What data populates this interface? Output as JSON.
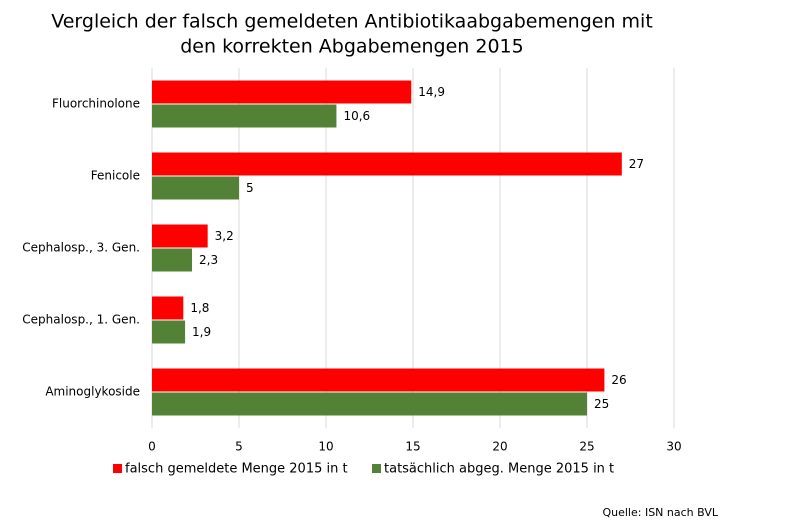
{
  "chart_data": {
    "type": "bar",
    "orientation": "horizontal",
    "title": [
      "Vergleich der falsch gemeldeten Antibiotikaabgabemengen mit",
      "den korrekten Abgabemengen 2015"
    ],
    "categories": [
      "Fluorchinolone",
      "Fenicole",
      "Cephalosp., 3. Gen.",
      "Cephalosp., 1. Gen.",
      "Aminoglykoside"
    ],
    "series": [
      {
        "name": "falsch gemeldete Menge 2015 in t",
        "color": "#ff0000",
        "values": [
          14.9,
          27,
          3.2,
          1.8,
          26
        ],
        "value_labels": [
          "14,9",
          "27",
          "3,2",
          "1,8",
          "26"
        ]
      },
      {
        "name": "tatsächlich abgeg. Menge 2015 in t",
        "color": "#538135",
        "values": [
          10.6,
          5,
          2.3,
          1.9,
          25
        ],
        "value_labels": [
          "10,6",
          "5",
          "2,3",
          "1,9",
          "25"
        ]
      }
    ],
    "xlim": [
      0,
      30
    ],
    "xticks": [
      0,
      5,
      10,
      15,
      20,
      25,
      30
    ],
    "grid": true,
    "legend": "bottom",
    "source": "Quelle: ISN nach BVL"
  }
}
